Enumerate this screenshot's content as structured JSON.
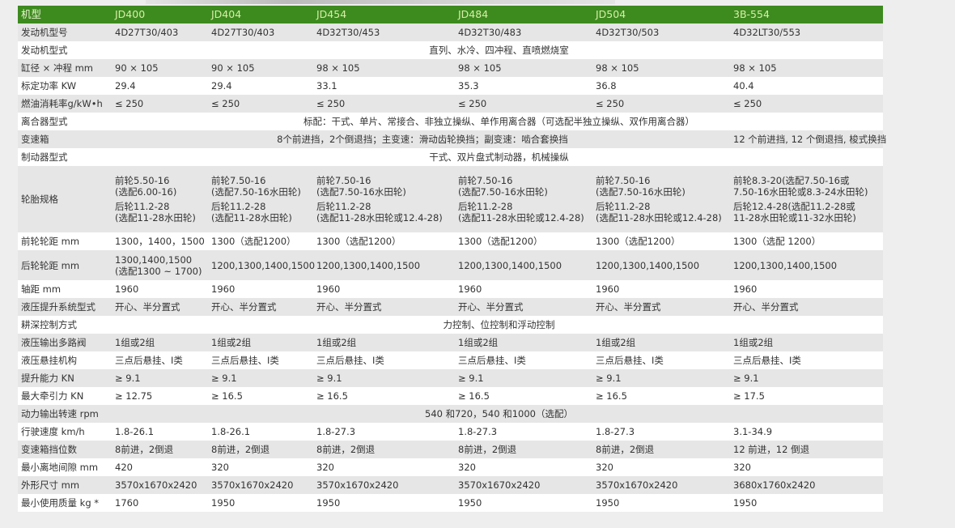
{
  "header": {
    "label": "机型",
    "models": [
      "JD400",
      "JD404",
      "JD454",
      "JD484",
      "JD504",
      "3B-554"
    ]
  },
  "colors": {
    "header_bg": "#3d8a1f",
    "header_text": "#d6efa6",
    "row_alt": "#e6e6e6"
  },
  "rows": [
    {
      "label": "发动机型号",
      "cells": [
        "4D27T30/403",
        "4D27T30/403",
        "4D32T30/453",
        "4D32T30/483",
        "4D32T30/503",
        "4D32LT30/553"
      ]
    },
    {
      "label": "发动机型式",
      "span": "直列、水冷、四冲程、直喷燃烧室"
    },
    {
      "label": "缸径 × 冲程 mm",
      "cells": [
        "90 × 105",
        "90 × 105",
        "98 × 105",
        "98 × 105",
        "98 × 105",
        "98 × 105"
      ]
    },
    {
      "label": "标定功率 KW",
      "cells": [
        "29.4",
        "29.4",
        "33.1",
        "35.3",
        "36.8",
        "40.4"
      ]
    },
    {
      "label": "燃油消耗率g/kW•h",
      "cells": [
        "≤ 250",
        "≤ 250",
        "≤ 250",
        "≤ 250",
        "≤ 250",
        "≤ 250"
      ]
    },
    {
      "label": "离合器型式",
      "span": "标配：干式、单片、常接合、非独立操纵、单作用离合器（可选配半独立操纵、双作用离合器）"
    },
    {
      "label": "变速箱",
      "span5": "8个前进挡，2个倒退挡；主变速：滑动齿轮换挡；副变速：啮合套换挡",
      "last": "12 个前进挡, 12 个倒退挡, 梭式换挡"
    },
    {
      "label": "制动器型式",
      "span": "干式、双片盘式制动器，机械操纵"
    },
    {
      "label": "轮胎规格",
      "tires": [
        {
          "front": "前轮5.50-16\n(选配6.00-16)",
          "rear": "后轮11.2-28\n(选配11-28水田轮)"
        },
        {
          "front": "前轮7.50-16\n(选配7.50-16水田轮)",
          "rear": "后轮11.2-28\n(选配11-28水田轮)"
        },
        {
          "front": "前轮7.50-16\n(选配7.50-16水田轮)",
          "rear": "后轮11.2-28\n(选配11-28水田轮或12.4-28)"
        },
        {
          "front": "前轮7.50-16\n(选配7.50-16水田轮)",
          "rear": "后轮11.2-28\n(选配11-28水田轮或12.4-28)"
        },
        {
          "front": "前轮7.50-16\n(选配7.50-16水田轮)",
          "rear": "后轮11.2-28\n(选配11-28水田轮或12.4-28)"
        },
        {
          "front": "前轮8.3-20(选配7.50-16或\n7.50-16水田轮或8.3-24水田轮)",
          "rear": "后轮12.4-28(选配11.2-28或\n11-28水田轮或11-32水田轮)"
        }
      ]
    },
    {
      "label": "前轮轮距 mm",
      "cells": [
        "1300，1400，1500",
        "1300（选配1200）",
        "1300（选配1200）",
        "1300（选配1200）",
        "1300（选配1200）",
        "1300（选配 1200）"
      ]
    },
    {
      "label": "后轮轮距 mm",
      "tall": true,
      "cells": [
        "1300,1400,1500\n(选配1300 ~ 1700)",
        "1200,1300,1400,1500",
        "1200,1300,1400,1500",
        "1200,1300,1400,1500",
        "1200,1300,1400,1500",
        "1200,1300,1400,1500"
      ]
    },
    {
      "label": "轴距 mm",
      "cells": [
        "1960",
        "1960",
        "1960",
        "1960",
        "1960",
        "1960"
      ]
    },
    {
      "label": "液压提升系统型式",
      "cells": [
        "开心、半分置式",
        "开心、半分置式",
        "开心、半分置式",
        "开心、半分置式",
        "开心、半分置式",
        "开心、半分置式"
      ]
    },
    {
      "label": "耕深控制方式",
      "span": "力控制、位控制和浮动控制"
    },
    {
      "label": "液压输出多路阀",
      "cells": [
        "1组或2组",
        "1组或2组",
        "1组或2组",
        "1组或2组",
        "1组或2组",
        "1组或2组"
      ]
    },
    {
      "label": "液压悬挂机构",
      "cells": [
        "三点后悬挂、Ⅰ类",
        "三点后悬挂、Ⅰ类",
        "三点后悬挂、Ⅰ类",
        "三点后悬挂、Ⅰ类",
        "三点后悬挂、Ⅰ类",
        "三点后悬挂、Ⅰ类"
      ]
    },
    {
      "label": "提升能力 KN",
      "cells": [
        "≥ 9.1",
        "≥ 9.1",
        "≥ 9.1",
        "≥ 9.1",
        "≥ 9.1",
        "≥ 9.1"
      ]
    },
    {
      "label": "最大牵引力 KN",
      "cells": [
        "≥ 12.75",
        "≥ 16.5",
        "≥ 16.5",
        "≥ 16.5",
        "≥ 16.5",
        "≥ 17.5"
      ]
    },
    {
      "label": "动力输出转速 rpm",
      "span": "540 和720，540 和1000（选配）"
    },
    {
      "label": "行驶速度 km/h",
      "cells": [
        "1.8-26.1",
        "1.8-26.1",
        "1.8-27.3",
        "1.8-27.3",
        "1.8-27.3",
        "3.1-34.9"
      ]
    },
    {
      "label": "变速箱挡位数",
      "cells": [
        "8前进，2倒退",
        "8前进，2倒退",
        "8前进，2倒退",
        "8前进，2倒退",
        "8前进，2倒退",
        "12 前进，12 倒退"
      ]
    },
    {
      "label": "最小离地间隙 mm",
      "cells": [
        "420",
        "320",
        "320",
        "320",
        "320",
        "320"
      ]
    },
    {
      "label": "外形尺寸 mm",
      "cells": [
        "3570x1670x2420",
        "3570x1670x2420",
        "3570x1670x2420",
        "3570x1670x2420",
        "3570x1670x2420",
        "3680x1760x2420"
      ]
    },
    {
      "label": "最小使用质量 kg *",
      "cells": [
        "1760",
        "1950",
        "1950",
        "1950",
        "1950",
        "1950"
      ]
    }
  ]
}
